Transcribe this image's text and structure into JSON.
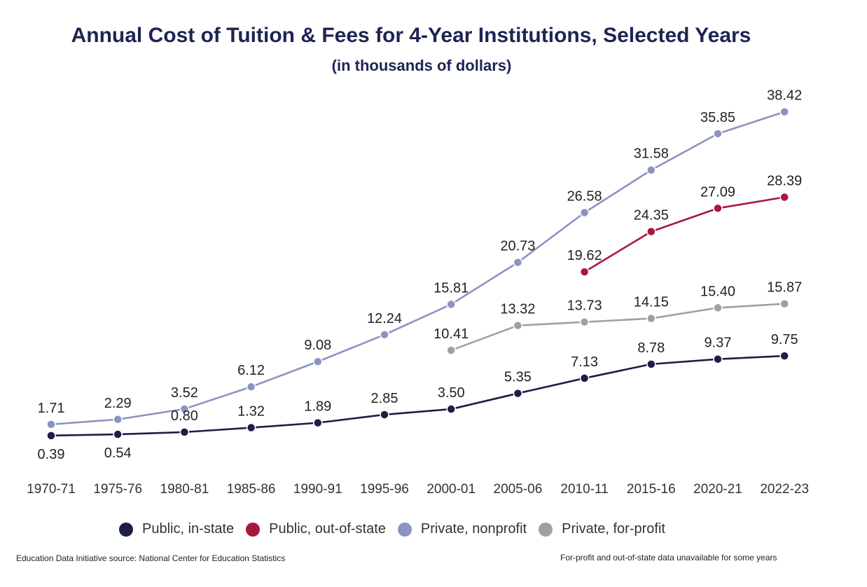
{
  "chart_data": {
    "type": "line",
    "title": "Annual Cost of Tuition & Fees for 4-Year Institutions, Selected Years",
    "subtitle": "(in thousands of dollars)",
    "categories": [
      "1970-71",
      "1975-76",
      "1980-81",
      "1985-86",
      "1990-91",
      "1995-96",
      "2000-01",
      "2005-06",
      "2010-11",
      "2015-16",
      "2020-21",
      "2022-23"
    ],
    "series": [
      {
        "name": "Public, in-state",
        "color": "#1b1f45",
        "values": [
          0.39,
          0.54,
          0.8,
          1.32,
          1.89,
          2.85,
          3.5,
          5.35,
          7.13,
          8.78,
          9.37,
          9.75
        ],
        "labels": [
          "0.39",
          "0.54",
          "0.80",
          "1.32",
          "1.89",
          "2.85",
          "3.50",
          "5.35",
          "7.13",
          "8.78",
          "9.37",
          "9.75"
        ]
      },
      {
        "name": "Public, out-of-state",
        "color": "#a8173c",
        "values": [
          null,
          null,
          null,
          null,
          null,
          null,
          null,
          null,
          19.62,
          24.35,
          27.09,
          28.39
        ],
        "labels": [
          "",
          "",
          "",
          "",
          "",
          "",
          "",
          "",
          "19.62",
          "24.35",
          "27.09",
          "28.39"
        ]
      },
      {
        "name": "Private, nonprofit",
        "color": "#8b93c4",
        "values": [
          1.71,
          2.29,
          3.52,
          6.12,
          9.08,
          12.24,
          15.81,
          20.73,
          26.58,
          31.58,
          35.85,
          38.42
        ],
        "labels": [
          "1.71",
          "2.29",
          "3.52",
          "6.12",
          "9.08",
          "12.24",
          "15.81",
          "20.73",
          "26.58",
          "31.58",
          "35.85",
          "38.42"
        ]
      },
      {
        "name": "Private, for-profit",
        "color": "#a0a0a0",
        "values": [
          null,
          null,
          null,
          null,
          null,
          null,
          10.41,
          13.32,
          13.73,
          14.15,
          15.4,
          15.87
        ],
        "labels": [
          "",
          "",
          "",
          "",
          "",
          "",
          "10.41",
          "13.32",
          "13.73",
          "14.15",
          "15.40",
          "15.87"
        ]
      }
    ],
    "ylim": [
      0,
      38.42
    ],
    "grid": false,
    "legend_position": "bottom"
  },
  "footer": {
    "source": "Education Data Initiative source: National Center for Education Statistics",
    "note": "For-profit and out-of-state data unavailable for some years"
  }
}
